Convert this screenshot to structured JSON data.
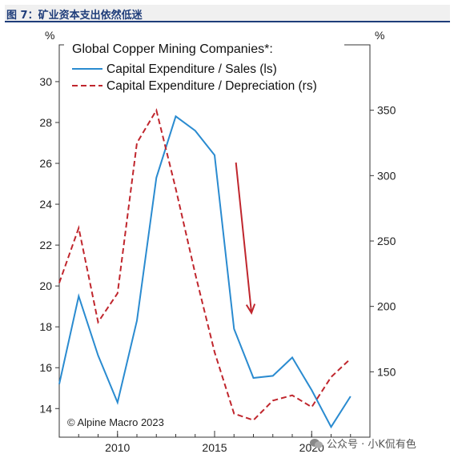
{
  "header": {
    "title": "图 7：矿业资本支出依然低迷"
  },
  "watermark": {
    "text": "公众号 · 小K侃有色",
    "icon": "wechat-icon"
  },
  "copyright": "© Alpine Macro 2023",
  "colors": {
    "sales": "#2a8bd0",
    "depreciation": "#c0262d",
    "header_rule": "#1f3d7a"
  },
  "chart_data": {
    "type": "line",
    "title": "Global Copper Mining Companies*:",
    "x": [
      2007,
      2008,
      2009,
      2010,
      2011,
      2012,
      2013,
      2014,
      2015,
      2016,
      2017,
      2018,
      2019,
      2020,
      2021,
      2022
    ],
    "xlim": [
      2007,
      2023
    ],
    "xticks": [
      2010,
      2015,
      2020
    ],
    "left_axis": {
      "unit": "%",
      "ylim": [
        12.6,
        31.8
      ],
      "ticks": [
        14,
        16,
        18,
        20,
        22,
        24,
        26,
        28,
        30
      ]
    },
    "right_axis": {
      "unit": "%",
      "ylim": [
        100,
        400
      ],
      "ticks": [
        150,
        200,
        250,
        300,
        350
      ]
    },
    "series": [
      {
        "name": "Capital Expenditure / Sales (ls)",
        "axis": "left",
        "style": "solid",
        "values": [
          15.2,
          19.5,
          16.6,
          14.3,
          18.3,
          25.3,
          28.3,
          27.6,
          26.4,
          17.9,
          15.5,
          15.6,
          16.5,
          14.9,
          13.1,
          14.6
        ]
      },
      {
        "name": "Capital Expenditure / Depreciation (rs)",
        "axis": "right",
        "style": "dashed",
        "values": [
          218,
          260,
          188,
          210,
          325,
          350,
          290,
          225,
          165,
          118,
          113,
          128,
          132,
          123,
          146,
          160
        ]
      }
    ],
    "annotations": [
      {
        "type": "arrow",
        "description": "downward arrow",
        "from": [
          2016.1,
          310
        ],
        "to": [
          2016.9,
          195
        ]
      }
    ]
  }
}
